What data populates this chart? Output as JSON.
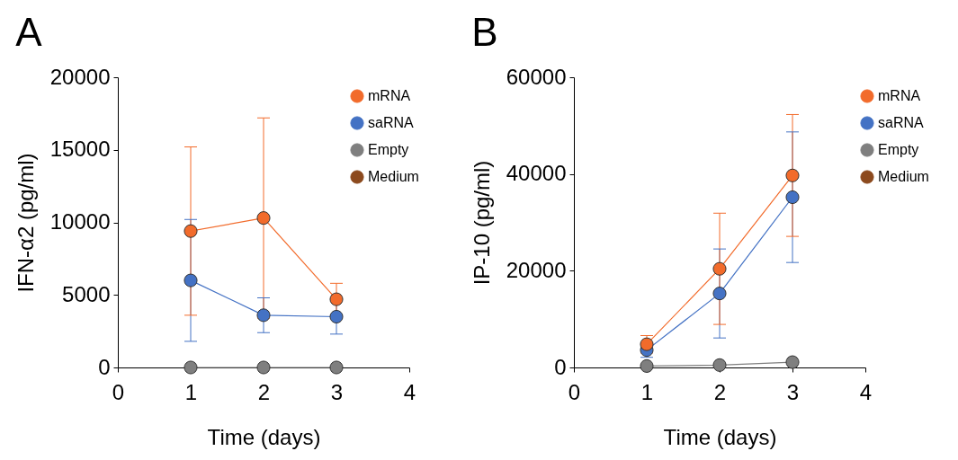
{
  "chart_data": [
    {
      "type": "line",
      "title": "A",
      "xlabel": "Time (days)",
      "ylabel": "IFN-α2 (pg/ml)",
      "x": [
        1,
        2,
        3
      ],
      "xlim": [
        0,
        4
      ],
      "xticks": [
        0,
        1,
        2,
        3,
        4
      ],
      "ylim": [
        0,
        20000
      ],
      "yticks": [
        0,
        5000,
        10000,
        15000,
        20000
      ],
      "marker": "circle",
      "line_style": "solid",
      "legend": "top right",
      "series": [
        {
          "name": "mRNA",
          "color": "#f26b2b",
          "values": [
            9400,
            10300,
            4700
          ],
          "errors": [
            5800,
            6900,
            1100
          ]
        },
        {
          "name": "saRNA",
          "color": "#4472c4",
          "values": [
            6000,
            3600,
            3500
          ],
          "errors": [
            4200,
            1200,
            1200
          ]
        },
        {
          "name": "Empty",
          "color": "#7f7f7f",
          "values": [
            0,
            0,
            0
          ]
        },
        {
          "name": "Medium",
          "color": "#8c4a1e",
          "values": [
            null,
            null,
            null
          ]
        }
      ]
    },
    {
      "type": "line",
      "title": "B",
      "xlabel": "Time (days)",
      "ylabel": "IP-10 (pg/ml)",
      "x": [
        1,
        2,
        3
      ],
      "xlim": [
        0,
        4
      ],
      "xticks": [
        0,
        1,
        2,
        3,
        4
      ],
      "ylim": [
        0,
        60000
      ],
      "yticks": [
        0,
        20000,
        40000,
        60000
      ],
      "marker": "circle",
      "line_style": "solid",
      "legend": "top right",
      "series": [
        {
          "name": "mRNA",
          "color": "#f26b2b",
          "values": [
            4800,
            20400,
            39700
          ],
          "errors": [
            1800,
            11500,
            12600
          ]
        },
        {
          "name": "saRNA",
          "color": "#4472c4",
          "values": [
            3600,
            15300,
            35200
          ],
          "errors": [
            1500,
            9200,
            13500
          ]
        },
        {
          "name": "Empty",
          "color": "#7f7f7f",
          "values": [
            300,
            500,
            1100
          ]
        },
        {
          "name": "Medium",
          "color": "#8c4a1e",
          "values": [
            null,
            null,
            null
          ]
        }
      ]
    }
  ]
}
